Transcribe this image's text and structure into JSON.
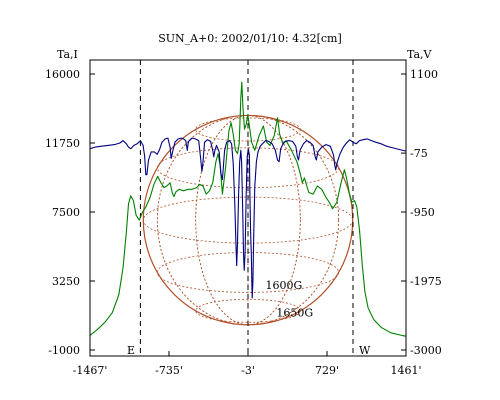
{
  "chart_data": {
    "type": "line",
    "title": "SUN_A+0: 2002/01/10: 4.32[cm]",
    "left_axis": {
      "label": "Ta,I",
      "ticks": [
        16000,
        11750,
        7500,
        3250,
        -1000
      ],
      "range": [
        -1000,
        16000
      ]
    },
    "right_axis": {
      "label": "Ta,V",
      "ticks": [
        1100,
        -75,
        -950,
        -1975,
        -3000
      ],
      "range": [
        -3000,
        1100
      ]
    },
    "x_axis": {
      "ticks": [
        "-1467'",
        "-735'",
        "-3'",
        "729'",
        "1461'"
      ],
      "tick_values": [
        -1467,
        -735,
        -3,
        729,
        1461
      ],
      "range": [
        -1467,
        1461
      ]
    },
    "grid": false,
    "marker_lines": [
      -1000,
      -3,
      970
    ],
    "limb_labels": {
      "east": "E",
      "west": "W"
    },
    "annotations": [
      {
        "text": "1600G",
        "x": 330,
        "y": 2750
      },
      {
        "text": "1650G",
        "x": 430,
        "y": 1050
      }
    ],
    "solar_disk": {
      "center": [
        -3,
        7000
      ],
      "radius_arcsec": 970,
      "color": "#b0522a"
    },
    "series": [
      {
        "axis": "left",
        "color": "#008000",
        "points": [
          [
            -1467,
            -100
          ],
          [
            -1400,
            250
          ],
          [
            -1330,
            700
          ],
          [
            -1260,
            1300
          ],
          [
            -1200,
            2400
          ],
          [
            -1160,
            4100
          ],
          [
            -1130,
            6300
          ],
          [
            -1110,
            8000
          ],
          [
            -1090,
            8500
          ],
          [
            -1065,
            8200
          ],
          [
            -1040,
            7300
          ],
          [
            -1010,
            7000
          ],
          [
            -980,
            7500
          ],
          [
            -950,
            7800
          ],
          [
            -910,
            8400
          ],
          [
            -875,
            9200
          ],
          [
            -840,
            9700
          ],
          [
            -810,
            9300
          ],
          [
            -780,
            9000
          ],
          [
            -755,
            9100
          ],
          [
            -725,
            9300
          ],
          [
            -705,
            8700
          ],
          [
            -690,
            8450
          ],
          [
            -670,
            8750
          ],
          [
            -640,
            8900
          ],
          [
            -600,
            8800
          ],
          [
            -560,
            8900
          ],
          [
            -520,
            8900
          ],
          [
            -480,
            9000
          ],
          [
            -450,
            9200
          ],
          [
            -420,
            9100
          ],
          [
            -390,
            8600
          ],
          [
            -360,
            8800
          ],
          [
            -330,
            9300
          ],
          [
            -300,
            10600
          ],
          [
            -280,
            11100
          ],
          [
            -260,
            10300
          ],
          [
            -240,
            8600
          ],
          [
            -210,
            10300
          ],
          [
            -180,
            12500
          ],
          [
            -160,
            13000
          ],
          [
            -140,
            12300
          ],
          [
            -120,
            11300
          ],
          [
            -100,
            11100
          ],
          [
            -85,
            11700
          ],
          [
            -70,
            14500
          ],
          [
            -60,
            15500
          ],
          [
            -50,
            14000
          ],
          [
            -35,
            12600
          ],
          [
            -20,
            12900
          ],
          [
            -5,
            13500
          ],
          [
            10,
            12800
          ],
          [
            30,
            11800
          ],
          [
            60,
            11300
          ],
          [
            100,
            12200
          ],
          [
            140,
            12800
          ],
          [
            170,
            11800
          ],
          [
            200,
            11600
          ],
          [
            240,
            12200
          ],
          [
            270,
            13300
          ],
          [
            290,
            12300
          ],
          [
            320,
            11700
          ],
          [
            350,
            11900
          ],
          [
            400,
            11300
          ],
          [
            450,
            10600
          ],
          [
            480,
            9900
          ],
          [
            500,
            9300
          ],
          [
            520,
            9600
          ],
          [
            560,
            8700
          ],
          [
            600,
            8600
          ],
          [
            640,
            9100
          ],
          [
            680,
            8900
          ],
          [
            720,
            8400
          ],
          [
            750,
            8100
          ],
          [
            780,
            7700
          ],
          [
            820,
            8100
          ],
          [
            860,
            9300
          ],
          [
            890,
            10100
          ],
          [
            910,
            9600
          ],
          [
            935,
            8700
          ],
          [
            960,
            8100
          ],
          [
            985,
            8200
          ],
          [
            1005,
            7800
          ],
          [
            1030,
            6400
          ],
          [
            1055,
            4300
          ],
          [
            1080,
            2600
          ],
          [
            1110,
            1600
          ],
          [
            1160,
            900
          ],
          [
            1230,
            400
          ],
          [
            1320,
            60
          ],
          [
            1420,
            -100
          ],
          [
            1461,
            -150
          ]
        ]
      },
      {
        "axis": "left",
        "color": "#000080",
        "points": [
          [
            -1467,
            11400
          ],
          [
            -1420,
            11500
          ],
          [
            -1360,
            11550
          ],
          [
            -1300,
            11600
          ],
          [
            -1240,
            11650
          ],
          [
            -1190,
            11750
          ],
          [
            -1160,
            11900
          ],
          [
            -1130,
            11700
          ],
          [
            -1110,
            11500
          ],
          [
            -1090,
            11400
          ],
          [
            -1060,
            11600
          ],
          [
            -1030,
            11700
          ],
          [
            -1000,
            11900
          ],
          [
            -975,
            11600
          ],
          [
            -960,
            10900
          ],
          [
            -950,
            9800
          ],
          [
            -940,
            9800
          ],
          [
            -925,
            10700
          ],
          [
            -900,
            11200
          ],
          [
            -870,
            11200
          ],
          [
            -845,
            11050
          ],
          [
            -825,
            11300
          ],
          [
            -800,
            11800
          ],
          [
            -770,
            12000
          ],
          [
            -745,
            12050
          ],
          [
            -725,
            11500
          ],
          [
            -715,
            10800
          ],
          [
            -705,
            11100
          ],
          [
            -680,
            11800
          ],
          [
            -650,
            12000
          ],
          [
            -620,
            12050
          ],
          [
            -600,
            12000
          ],
          [
            -580,
            11900
          ],
          [
            -570,
            11500
          ],
          [
            -565,
            11300
          ],
          [
            -555,
            11850
          ],
          [
            -520,
            12050
          ],
          [
            -490,
            12000
          ],
          [
            -460,
            11900
          ],
          [
            -440,
            10700
          ],
          [
            -430,
            10000
          ],
          [
            -420,
            10600
          ],
          [
            -405,
            11800
          ],
          [
            -380,
            11950
          ],
          [
            -350,
            11850
          ],
          [
            -330,
            11300
          ],
          [
            -320,
            10900
          ],
          [
            -310,
            11300
          ],
          [
            -295,
            11600
          ],
          [
            -270,
            11200
          ],
          [
            -255,
            9900
          ],
          [
            -240,
            9500
          ],
          [
            -220,
            11300
          ],
          [
            -200,
            11800
          ],
          [
            -175,
            11900
          ],
          [
            -155,
            11700
          ],
          [
            -140,
            10500
          ],
          [
            -125,
            8000
          ],
          [
            -115,
            5600
          ],
          [
            -108,
            4200
          ],
          [
            -100,
            5600
          ],
          [
            -90,
            8600
          ],
          [
            -80,
            10600
          ],
          [
            -70,
            11300
          ],
          [
            -62,
            10600
          ],
          [
            -52,
            7600
          ],
          [
            -45,
            5000
          ],
          [
            -38,
            3900
          ],
          [
            -30,
            5000
          ],
          [
            -20,
            8600
          ],
          [
            -10,
            10900
          ],
          [
            0,
            11400
          ],
          [
            10,
            11000
          ],
          [
            15,
            8600
          ],
          [
            20,
            6600
          ],
          [
            24,
            5600
          ],
          [
            28,
            5000
          ],
          [
            32,
            3300
          ],
          [
            36,
            2200
          ],
          [
            42,
            3200
          ],
          [
            50,
            6000
          ],
          [
            60,
            9100
          ],
          [
            75,
            10600
          ],
          [
            90,
            11200
          ],
          [
            110,
            11550
          ],
          [
            130,
            11700
          ],
          [
            160,
            11900
          ],
          [
            190,
            11850
          ],
          [
            220,
            11700
          ],
          [
            250,
            11300
          ],
          [
            270,
            10700
          ],
          [
            285,
            10600
          ],
          [
            300,
            11400
          ],
          [
            330,
            11800
          ],
          [
            370,
            11900
          ],
          [
            410,
            11850
          ],
          [
            440,
            11550
          ],
          [
            455,
            10900
          ],
          [
            465,
            10700
          ],
          [
            480,
            11300
          ],
          [
            510,
            11700
          ],
          [
            540,
            11900
          ],
          [
            570,
            11800
          ],
          [
            600,
            11600
          ],
          [
            620,
            10900
          ],
          [
            630,
            10700
          ],
          [
            645,
            11200
          ],
          [
            680,
            11500
          ],
          [
            720,
            11650
          ],
          [
            760,
            11550
          ],
          [
            790,
            11000
          ],
          [
            800,
            10400
          ],
          [
            810,
            10100
          ],
          [
            825,
            10600
          ],
          [
            850,
            11100
          ],
          [
            880,
            11500
          ],
          [
            910,
            11750
          ],
          [
            940,
            11950
          ],
          [
            970,
            11800
          ],
          [
            1000,
            11700
          ],
          [
            1030,
            11900
          ],
          [
            1060,
            11950
          ],
          [
            1100,
            12000
          ],
          [
            1140,
            11900
          ],
          [
            1180,
            11800
          ],
          [
            1230,
            11700
          ],
          [
            1280,
            11550
          ],
          [
            1340,
            11450
          ],
          [
            1400,
            11350
          ],
          [
            1461,
            11250
          ]
        ]
      }
    ]
  }
}
